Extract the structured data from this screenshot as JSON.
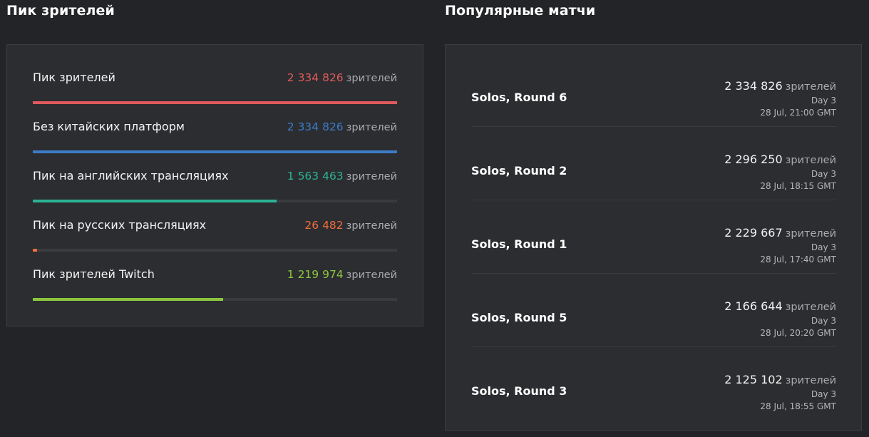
{
  "peak_section": {
    "title": "Пик зрителей",
    "rows": [
      {
        "label": "Пик зрителей",
        "value": "2 334 826",
        "unit": "зрителей",
        "color": "#e05a5d",
        "fraction": 1.0
      },
      {
        "label": "Без китайских платформ",
        "value": "2 334 826",
        "unit": "зрителей",
        "color": "#3b7cc7",
        "fraction": 1.0
      },
      {
        "label": "Пик на английских трансляциях",
        "value": "1 563 463",
        "unit": "зрителей",
        "color": "#2bb394",
        "fraction": 0.67
      },
      {
        "label": "Пик на русских трансляциях",
        "value": "26 482",
        "unit": "зрителей",
        "color": "#f06d3c",
        "fraction": 0.011
      },
      {
        "label": "Пик зрителей Twitch",
        "value": "1 219 974",
        "unit": "зрителей",
        "color": "#8cc63f",
        "fraction": 0.522
      }
    ]
  },
  "matches_section": {
    "title": "Популярные матчи",
    "matches": [
      {
        "name": "Solos, Round 6",
        "viewers": "2 334 826",
        "unit": "зрителей",
        "day": "Day 3",
        "time": "28 Jul, 21:00 GMT"
      },
      {
        "name": "Solos, Round 2",
        "viewers": "2 296 250",
        "unit": "зрителей",
        "day": "Day 3",
        "time": "28 Jul, 18:15 GMT"
      },
      {
        "name": "Solos, Round 1",
        "viewers": "2 229 667",
        "unit": "зрителей",
        "day": "Day 3",
        "time": "28 Jul, 17:40 GMT"
      },
      {
        "name": "Solos, Round 5",
        "viewers": "2 166 644",
        "unit": "зрителей",
        "day": "Day 3",
        "time": "28 Jul, 20:20 GMT"
      },
      {
        "name": "Solos, Round 3",
        "viewers": "2 125 102",
        "unit": "зрителей",
        "day": "Day 3",
        "time": "28 Jul, 18:55 GMT"
      }
    ]
  }
}
